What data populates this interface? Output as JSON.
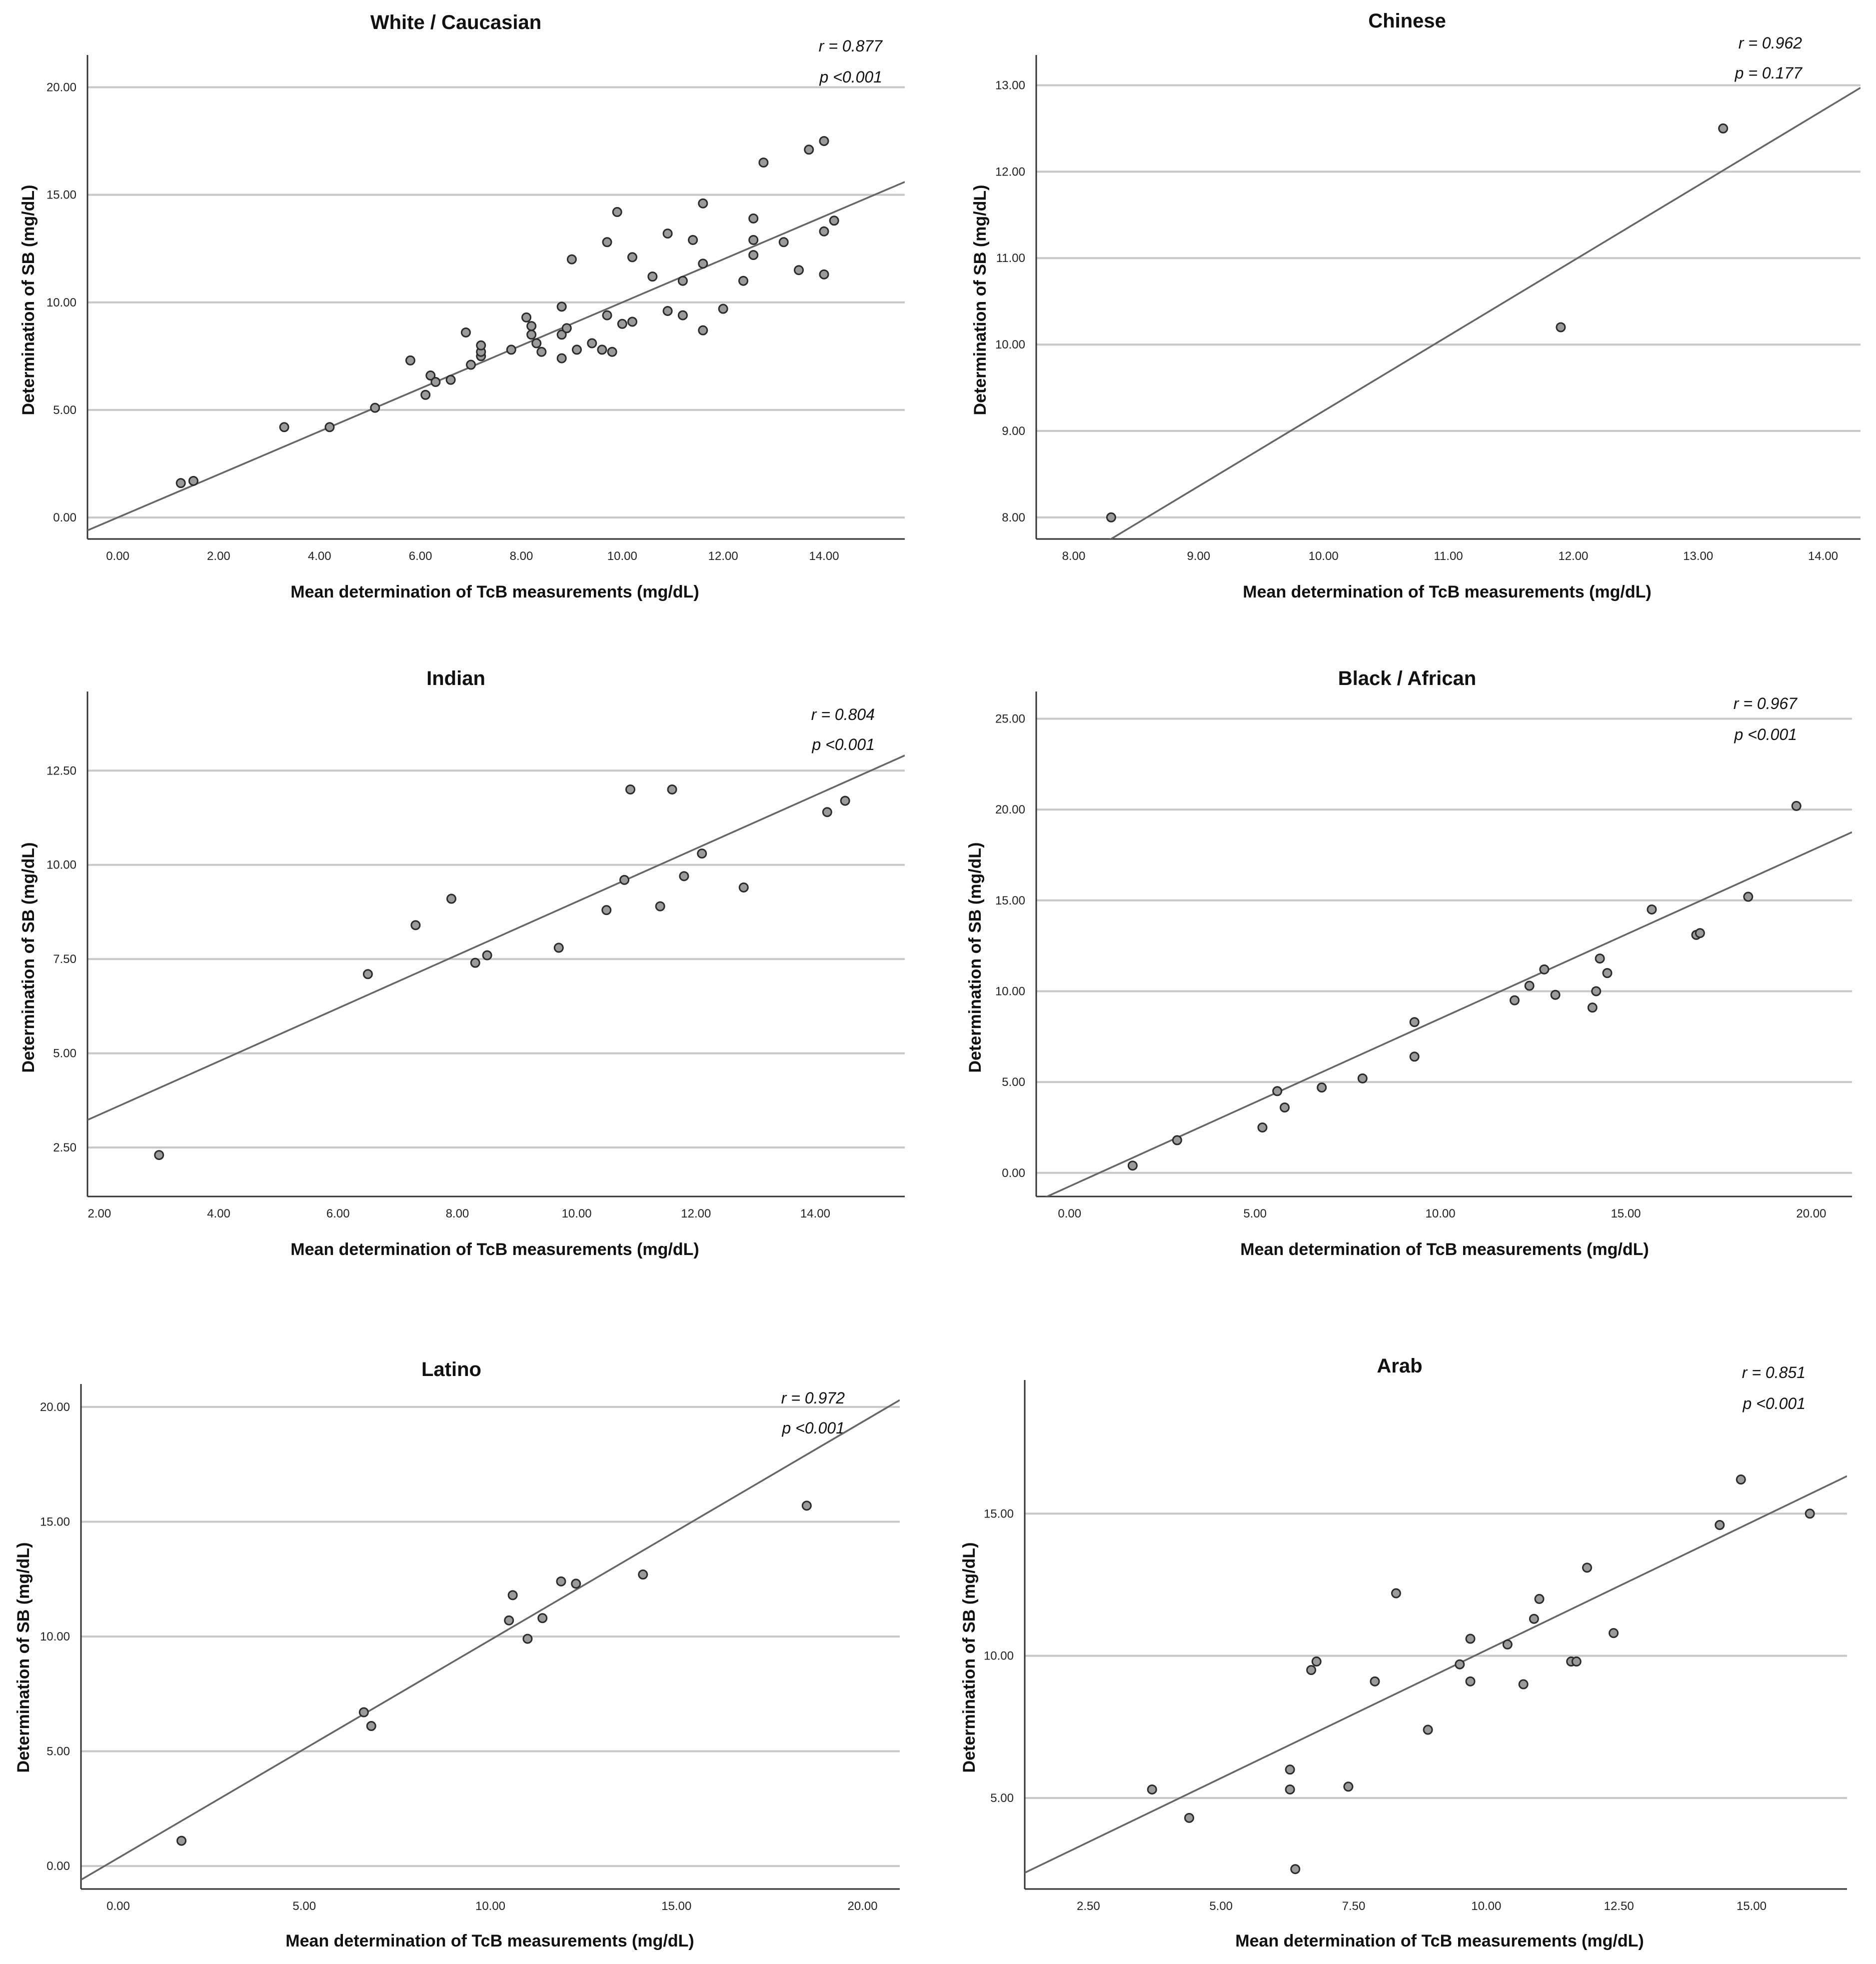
{
  "chart_data": [
    {
      "type": "scatter",
      "title": "White / Caucasian",
      "xlabel": "Mean determination of TcB measurements (mg/dL)",
      "ylabel": "Determination of SB (mg/dL)",
      "xlim": [
        -0.6,
        15.6
      ],
      "ylim": [
        -1.0,
        21.5
      ],
      "xticks": [
        "0.00",
        "2.00",
        "4.00",
        "6.00",
        "8.00",
        "10.00",
        "12.00",
        "14.00"
      ],
      "xtick_values": [
        0,
        2,
        4,
        6,
        8,
        10,
        12,
        14
      ],
      "yticks": [
        "0.00",
        "5.00",
        "10.00",
        "15.00",
        "20.00"
      ],
      "ytick_values": [
        0,
        5,
        10,
        15,
        20
      ],
      "r_label": "r = 0.877",
      "p_label": "p <0.001",
      "fit": {
        "slope": 1.0,
        "intercept": 0.0
      },
      "points": [
        [
          1.25,
          1.6
        ],
        [
          1.5,
          1.7
        ],
        [
          3.3,
          4.2
        ],
        [
          4.2,
          4.2
        ],
        [
          5.1,
          5.1
        ],
        [
          5.8,
          7.3
        ],
        [
          6.1,
          5.7
        ],
        [
          6.2,
          6.6
        ],
        [
          6.3,
          6.3
        ],
        [
          6.6,
          6.4
        ],
        [
          6.9,
          8.6
        ],
        [
          7.0,
          7.1
        ],
        [
          7.2,
          7.5
        ],
        [
          7.2,
          7.7
        ],
        [
          7.2,
          8.0
        ],
        [
          7.8,
          7.8
        ],
        [
          8.1,
          9.3
        ],
        [
          8.2,
          8.5
        ],
        [
          8.2,
          8.9
        ],
        [
          8.3,
          8.1
        ],
        [
          8.4,
          7.7
        ],
        [
          8.8,
          9.8
        ],
        [
          8.8,
          8.5
        ],
        [
          8.8,
          7.4
        ],
        [
          8.9,
          8.8
        ],
        [
          9.0,
          12.0
        ],
        [
          9.1,
          7.8
        ],
        [
          9.4,
          8.1
        ],
        [
          9.6,
          7.8
        ],
        [
          9.7,
          9.4
        ],
        [
          9.8,
          7.7
        ],
        [
          9.7,
          12.8
        ],
        [
          9.9,
          14.2
        ],
        [
          10.0,
          9.0
        ],
        [
          10.2,
          9.1
        ],
        [
          10.2,
          12.1
        ],
        [
          10.6,
          11.2
        ],
        [
          10.9,
          13.2
        ],
        [
          10.9,
          9.6
        ],
        [
          11.2,
          11.0
        ],
        [
          11.2,
          9.4
        ],
        [
          11.4,
          12.9
        ],
        [
          11.6,
          14.6
        ],
        [
          11.6,
          8.7
        ],
        [
          11.6,
          11.8
        ],
        [
          12.0,
          9.7
        ],
        [
          12.4,
          11.0
        ],
        [
          12.6,
          13.9
        ],
        [
          12.6,
          12.9
        ],
        [
          12.6,
          12.2
        ],
        [
          12.8,
          16.5
        ],
        [
          13.2,
          12.8
        ],
        [
          13.5,
          11.5
        ],
        [
          13.7,
          17.1
        ],
        [
          14.0,
          17.5
        ],
        [
          14.0,
          13.3
        ],
        [
          14.0,
          11.3
        ],
        [
          14.2,
          13.8
        ]
      ]
    },
    {
      "type": "scatter",
      "title": "Chinese",
      "xlabel": "Mean determination of TcB measurements (mg/dL)",
      "ylabel": "Determination of SB (mg/dL)",
      "xlim": [
        7.7,
        14.3
      ],
      "ylim": [
        7.75,
        13.35
      ],
      "xticks": [
        "8.00",
        "9.00",
        "10.00",
        "11.00",
        "12.00",
        "13.00",
        "14.00"
      ],
      "xtick_values": [
        8,
        9,
        10,
        11,
        12,
        13,
        14
      ],
      "yticks": [
        "8.00",
        "9.00",
        "10.00",
        "11.00",
        "12.00",
        "13.00"
      ],
      "ytick_values": [
        8,
        9,
        10,
        11,
        12,
        13
      ],
      "r_label": "r = 0.962",
      "p_label": "p = 0.177",
      "fit": {
        "slope": 0.87,
        "intercept": 0.53
      },
      "points": [
        [
          8.3,
          8.0
        ],
        [
          11.9,
          10.2
        ],
        [
          13.2,
          12.5
        ]
      ]
    },
    {
      "type": "scatter",
      "title": "Indian",
      "xlabel": "Mean determination of TcB measurements (mg/dL)",
      "ylabel": "Determination of SB (mg/dL)",
      "xlim": [
        1.8,
        15.5
      ],
      "ylim": [
        1.2,
        14.6
      ],
      "xticks": [
        "2.00",
        "4.00",
        "6.00",
        "8.00",
        "10.00",
        "12.00",
        "14.00"
      ],
      "xtick_values": [
        2,
        4,
        6,
        8,
        10,
        12,
        14
      ],
      "yticks": [
        "2.50",
        "5.00",
        "7.50",
        "10.00",
        "12.50"
      ],
      "ytick_values": [
        2.5,
        5,
        7.5,
        10,
        12.5
      ],
      "r_label": "r = 0.804",
      "p_label": "p <0.001",
      "fit": {
        "slope": 0.706,
        "intercept": 1.96
      },
      "points": [
        [
          3.0,
          2.3
        ],
        [
          6.5,
          7.1
        ],
        [
          7.3,
          8.4
        ],
        [
          7.9,
          9.1
        ],
        [
          8.3,
          7.4
        ],
        [
          8.5,
          7.6
        ],
        [
          9.7,
          7.8
        ],
        [
          10.5,
          8.8
        ],
        [
          10.8,
          9.6
        ],
        [
          10.9,
          12.0
        ],
        [
          11.4,
          8.9
        ],
        [
          11.6,
          12.0
        ],
        [
          11.8,
          9.7
        ],
        [
          12.1,
          10.3
        ],
        [
          12.8,
          9.4
        ],
        [
          14.2,
          11.4
        ],
        [
          14.5,
          11.7
        ]
      ]
    },
    {
      "type": "scatter",
      "title": "Black / African",
      "xlabel": "Mean determination of TcB measurements (mg/dL)",
      "ylabel": "Determination of SB (mg/dL)",
      "xlim": [
        -0.9,
        21.1
      ],
      "ylim": [
        -1.3,
        26.5
      ],
      "xticks": [
        "0.00",
        "5.00",
        "10.00",
        "15.00",
        "20.00"
      ],
      "xtick_values": [
        0,
        5,
        10,
        15,
        20
      ],
      "yticks": [
        "0.00",
        "5.00",
        "10.00",
        "15.00",
        "20.00",
        "25.00"
      ],
      "ytick_values": [
        0,
        5,
        10,
        15,
        20,
        25
      ],
      "r_label": "r = 0.967",
      "p_label": "p <0.001",
      "fit": {
        "slope": 0.924,
        "intercept": -0.74
      },
      "points": [
        [
          1.7,
          0.4
        ],
        [
          2.9,
          1.8
        ],
        [
          5.2,
          2.5
        ],
        [
          5.6,
          4.5
        ],
        [
          5.8,
          3.6
        ],
        [
          6.8,
          4.7
        ],
        [
          7.9,
          5.2
        ],
        [
          9.3,
          8.3
        ],
        [
          9.3,
          6.4
        ],
        [
          12.0,
          9.5
        ],
        [
          12.4,
          10.3
        ],
        [
          12.8,
          11.2
        ],
        [
          13.1,
          9.8
        ],
        [
          14.1,
          9.1
        ],
        [
          14.2,
          10.0
        ],
        [
          14.3,
          11.8
        ],
        [
          14.5,
          11.0
        ],
        [
          15.7,
          14.5
        ],
        [
          16.9,
          13.1
        ],
        [
          17.0,
          13.2
        ],
        [
          18.3,
          15.2
        ],
        [
          19.6,
          20.2
        ]
      ]
    },
    {
      "type": "scatter",
      "title": "Latino",
      "xlabel": "Mean determination of TcB measurements (mg/dL)",
      "ylabel": "Determination of SB (mg/dL)",
      "xlim": [
        -1.0,
        21.0
      ],
      "ylim": [
        -1.0,
        21.0
      ],
      "xticks": [
        "0.00",
        "5.00",
        "10.00",
        "15.00",
        "20.00"
      ],
      "xtick_values": [
        0,
        5,
        10,
        15,
        20
      ],
      "yticks": [
        "0.00",
        "5.00",
        "10.00",
        "15.00",
        "20.00"
      ],
      "ytick_values": [
        0,
        5,
        10,
        15,
        20
      ],
      "r_label": "r = 0.972",
      "p_label": "p <0.001",
      "fit": {
        "slope": 0.95,
        "intercept": 0.35
      },
      "points": [
        [
          1.7,
          1.1
        ],
        [
          6.6,
          6.7
        ],
        [
          6.8,
          6.1
        ],
        [
          10.5,
          10.7
        ],
        [
          10.6,
          11.8
        ],
        [
          11.0,
          9.9
        ],
        [
          11.4,
          10.8
        ],
        [
          11.9,
          12.4
        ],
        [
          12.3,
          12.3
        ],
        [
          14.1,
          12.7
        ],
        [
          18.5,
          15.7
        ]
      ]
    },
    {
      "type": "scatter",
      "title": "Arab",
      "xlabel": "Mean determination of TcB measurements (mg/dL)",
      "ylabel": "Determination of SB (mg/dL)",
      "xlim": [
        1.3,
        16.8
      ],
      "ylim": [
        1.8,
        19.7
      ],
      "xticks": [
        "2.50",
        "5.00",
        "7.50",
        "10.00",
        "12.50",
        "15.00"
      ],
      "xtick_values": [
        2.5,
        5,
        7.5,
        10,
        12.5,
        15
      ],
      "yticks": [
        "5.00",
        "10.00",
        "15.00"
      ],
      "ytick_values": [
        5,
        10,
        15
      ],
      "r_label": "r = 0.851",
      "p_label": "p <0.001",
      "fit": {
        "slope": 0.9,
        "intercept": 1.2
      },
      "points": [
        [
          3.7,
          5.3
        ],
        [
          4.4,
          4.3
        ],
        [
          6.3,
          6.0
        ],
        [
          6.3,
          5.3
        ],
        [
          6.4,
          2.5
        ],
        [
          6.7,
          9.5
        ],
        [
          6.8,
          9.8
        ],
        [
          7.4,
          5.4
        ],
        [
          7.9,
          9.1
        ],
        [
          8.3,
          12.2
        ],
        [
          8.9,
          7.4
        ],
        [
          9.5,
          9.7
        ],
        [
          9.7,
          10.6
        ],
        [
          9.7,
          9.1
        ],
        [
          10.4,
          10.4
        ],
        [
          10.7,
          9.0
        ],
        [
          10.9,
          11.3
        ],
        [
          11.0,
          12.0
        ],
        [
          11.6,
          9.8
        ],
        [
          11.7,
          9.8
        ],
        [
          11.9,
          13.1
        ],
        [
          12.4,
          10.8
        ],
        [
          14.4,
          14.6
        ],
        [
          14.8,
          16.2
        ],
        [
          16.1,
          15.0
        ]
      ]
    }
  ]
}
